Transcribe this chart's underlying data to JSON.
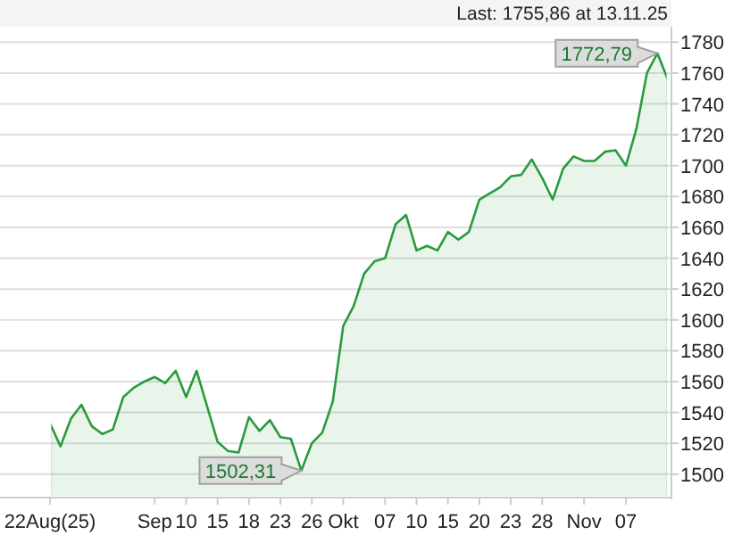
{
  "chart_data": {
    "type": "area",
    "title": "Last: 1755,86 at 13.11.25",
    "categories": [
      "22Aug(25)",
      null,
      null,
      null,
      null,
      null,
      null,
      null,
      null,
      null,
      "Sep",
      null,
      null,
      "10",
      null,
      null,
      "15",
      null,
      null,
      "18",
      null,
      null,
      "23",
      null,
      null,
      "26",
      null,
      null,
      "Okt",
      null,
      null,
      null,
      "07",
      null,
      null,
      "10",
      null,
      null,
      "15",
      null,
      null,
      "20",
      null,
      null,
      "23",
      null,
      null,
      "28",
      null,
      null,
      null,
      "Nov",
      null,
      null,
      null,
      "07",
      null,
      null,
      null,
      null
    ],
    "series": [
      {
        "color": "#2a9a3e",
        "values": [
          1533,
          1518,
          1536,
          1545,
          1531,
          1526,
          1529,
          1550,
          1556,
          1560,
          1563,
          1559,
          1567,
          1550,
          1567,
          1544,
          1521,
          1515,
          1514,
          1537,
          1528,
          1535,
          1524,
          1523,
          1502.31,
          1520,
          1527,
          1547,
          1596,
          1609,
          1630,
          1638,
          1640,
          1662,
          1668,
          1645,
          1648,
          1645,
          1657,
          1652,
          1657,
          1678,
          1682,
          1686,
          1693,
          1694,
          1704,
          1692,
          1678,
          1698,
          1706,
          1703,
          1703,
          1709,
          1710,
          1700,
          1724,
          1760,
          1772.79,
          1755.86
        ],
        "value_labels": [
          null,
          null,
          null,
          null,
          null,
          null,
          null,
          null,
          null,
          null,
          null,
          null,
          null,
          null,
          null,
          null,
          null,
          null,
          null,
          null,
          null,
          null,
          null,
          null,
          "1502,31",
          null,
          null,
          null,
          null,
          null,
          null,
          null,
          null,
          null,
          null,
          null,
          null,
          null,
          null,
          null,
          null,
          null,
          null,
          null,
          null,
          null,
          null,
          null,
          null,
          null,
          null,
          null,
          null,
          null,
          null,
          null,
          null,
          null,
          "1772,79",
          null
        ]
      }
    ],
    "ylim": [
      1486,
      1790
    ],
    "yticks": [
      1500,
      1520,
      1540,
      1560,
      1580,
      1600,
      1620,
      1640,
      1660,
      1680,
      1700,
      1720,
      1740,
      1760,
      1780
    ],
    "grid": "y"
  }
}
